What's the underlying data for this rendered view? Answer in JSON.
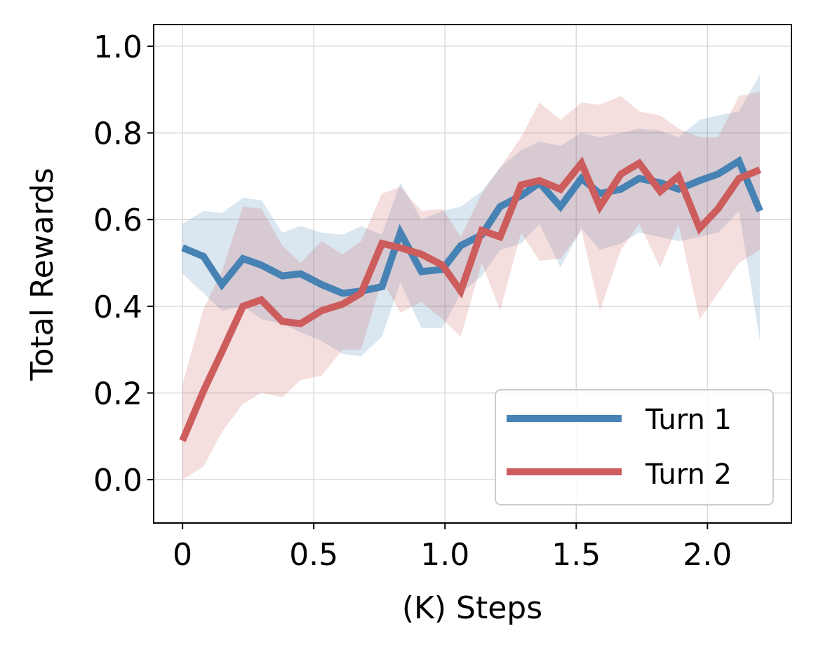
{
  "chart_data": {
    "type": "line",
    "title": "",
    "xlabel": "(K) Steps",
    "ylabel": "Total Rewards",
    "xlim": [
      -0.11,
      2.32
    ],
    "ylim": [
      -0.1,
      1.05
    ],
    "grid": true,
    "legend_position": "bottom-right",
    "xticks": [
      0,
      0.5,
      1.0,
      1.5,
      2.0
    ],
    "xtick_labels": [
      "0",
      "0.5",
      "1.0",
      "1.5",
      "2.0"
    ],
    "yticks": [
      0.0,
      0.2,
      0.4,
      0.6,
      0.8,
      1.0
    ],
    "ytick_labels": [
      "0.0",
      "0.2",
      "0.4",
      "0.6",
      "0.8",
      "1.0"
    ],
    "x": [
      0.0,
      0.08,
      0.15,
      0.23,
      0.3,
      0.38,
      0.45,
      0.53,
      0.61,
      0.68,
      0.76,
      0.83,
      0.91,
      0.99,
      1.06,
      1.14,
      1.21,
      1.29,
      1.36,
      1.44,
      1.52,
      1.59,
      1.67,
      1.74,
      1.82,
      1.89,
      1.97,
      2.04,
      2.12,
      2.2
    ],
    "series": [
      {
        "name": "Turn 1",
        "color": "#4682b4",
        "values": [
          0.535,
          0.515,
          0.45,
          0.51,
          0.495,
          0.47,
          0.475,
          0.45,
          0.43,
          0.435,
          0.445,
          0.57,
          0.48,
          0.485,
          0.54,
          0.565,
          0.63,
          0.655,
          0.685,
          0.63,
          0.695,
          0.66,
          0.67,
          0.695,
          0.685,
          0.67,
          0.69,
          0.705,
          0.735,
          0.62
        ],
        "lower": [
          0.475,
          0.43,
          0.39,
          0.4,
          0.37,
          0.36,
          0.34,
          0.32,
          0.29,
          0.285,
          0.33,
          0.455,
          0.35,
          0.35,
          0.43,
          0.47,
          0.53,
          0.545,
          0.59,
          0.49,
          0.58,
          0.53,
          0.545,
          0.57,
          0.56,
          0.55,
          0.56,
          0.57,
          0.62,
          0.32
        ],
        "upper": [
          0.59,
          0.62,
          0.615,
          0.65,
          0.645,
          0.57,
          0.585,
          0.57,
          0.565,
          0.585,
          0.565,
          0.685,
          0.6,
          0.62,
          0.63,
          0.665,
          0.72,
          0.76,
          0.78,
          0.77,
          0.8,
          0.79,
          0.8,
          0.81,
          0.805,
          0.79,
          0.83,
          0.84,
          0.85,
          0.935
        ]
      },
      {
        "name": "Turn 2",
        "color": "#cd5c5c",
        "values": [
          0.09,
          0.205,
          0.295,
          0.4,
          0.415,
          0.365,
          0.36,
          0.39,
          0.405,
          0.43,
          0.545,
          0.535,
          0.52,
          0.495,
          0.435,
          0.575,
          0.56,
          0.68,
          0.69,
          0.67,
          0.73,
          0.63,
          0.705,
          0.73,
          0.665,
          0.7,
          0.58,
          0.625,
          0.695,
          0.715
        ],
        "lower": [
          0.0,
          0.03,
          0.11,
          0.175,
          0.2,
          0.19,
          0.23,
          0.24,
          0.3,
          0.3,
          0.46,
          0.385,
          0.41,
          0.37,
          0.33,
          0.5,
          0.39,
          0.57,
          0.505,
          0.51,
          0.575,
          0.39,
          0.53,
          0.59,
          0.49,
          0.59,
          0.37,
          0.43,
          0.5,
          0.53
        ],
        "upper": [
          0.22,
          0.395,
          0.48,
          0.63,
          0.625,
          0.54,
          0.5,
          0.55,
          0.52,
          0.55,
          0.66,
          0.675,
          0.62,
          0.625,
          0.56,
          0.66,
          0.72,
          0.79,
          0.87,
          0.83,
          0.87,
          0.865,
          0.885,
          0.85,
          0.84,
          0.81,
          0.79,
          0.79,
          0.885,
          0.895
        ]
      }
    ]
  }
}
